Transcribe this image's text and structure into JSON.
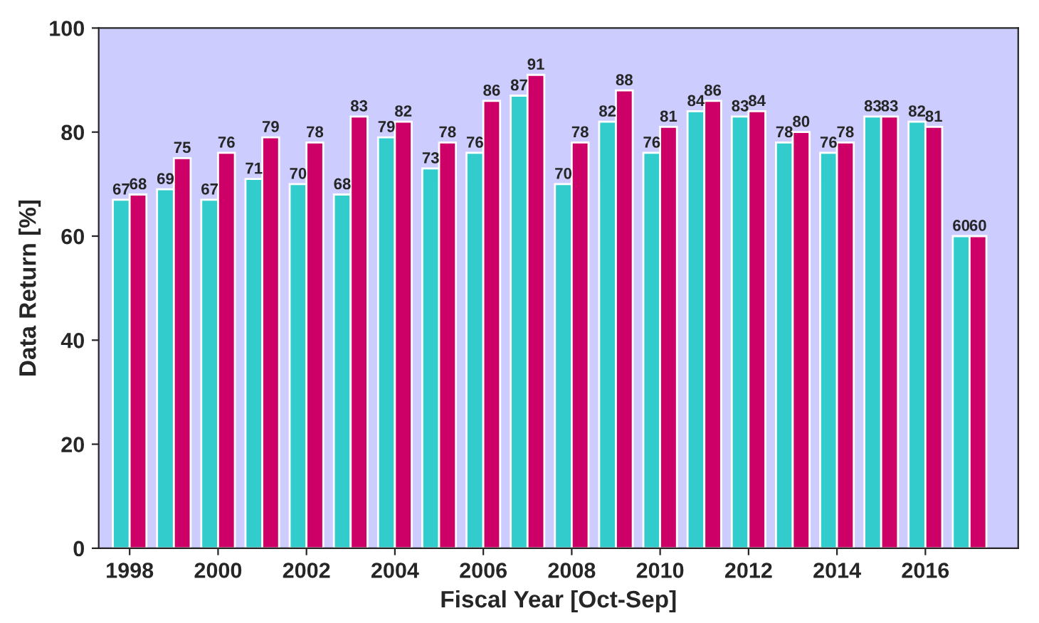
{
  "chart_data": {
    "type": "bar",
    "xlabel": "Fiscal Year [Oct-Sep]",
    "ylabel": "Data Return [%]",
    "x": [
      1998,
      1999,
      2000,
      2001,
      2002,
      2003,
      2004,
      2005,
      2006,
      2007,
      2008,
      2009,
      2010,
      2011,
      2012,
      2013,
      2014,
      2015,
      2016,
      2017
    ],
    "series": [
      {
        "color": "#33cccc",
        "values": [
          67,
          69,
          67,
          71,
          70,
          68,
          79,
          73,
          76,
          87,
          70,
          82,
          76,
          84,
          83,
          78,
          76,
          83,
          82,
          60
        ]
      },
      {
        "color": "#cc0066",
        "values": [
          68,
          75,
          76,
          79,
          78,
          83,
          82,
          78,
          86,
          91,
          78,
          88,
          81,
          86,
          84,
          80,
          78,
          83,
          81,
          60
        ]
      }
    ],
    "xlim": [
      1997.3,
      2018.1
    ],
    "xticks": [
      1998,
      2000,
      2002,
      2004,
      2006,
      2008,
      2010,
      2012,
      2014,
      2016
    ],
    "ylim": [
      0,
      100
    ],
    "yticks": [
      0,
      20,
      40,
      60,
      80,
      100
    ],
    "data_labels": true,
    "grid": false,
    "legend": false
  }
}
